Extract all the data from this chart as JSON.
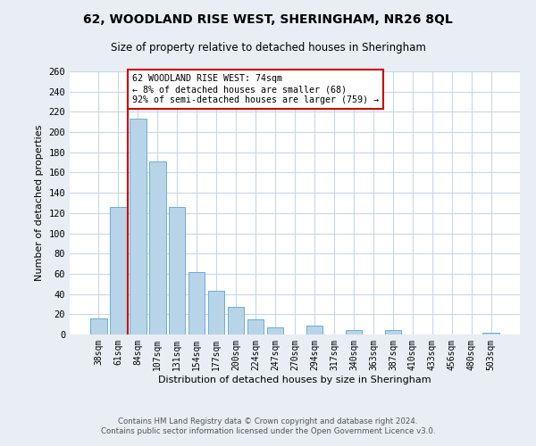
{
  "title": "62, WOODLAND RISE WEST, SHERINGHAM, NR26 8QL",
  "subtitle": "Size of property relative to detached houses in Sheringham",
  "xlabel": "Distribution of detached houses by size in Sheringham",
  "ylabel": "Number of detached properties",
  "bar_labels": [
    "38sqm",
    "61sqm",
    "84sqm",
    "107sqm",
    "131sqm",
    "154sqm",
    "177sqm",
    "200sqm",
    "224sqm",
    "247sqm",
    "270sqm",
    "294sqm",
    "317sqm",
    "340sqm",
    "363sqm",
    "387sqm",
    "410sqm",
    "433sqm",
    "456sqm",
    "480sqm",
    "503sqm"
  ],
  "bar_values": [
    16,
    126,
    213,
    171,
    126,
    62,
    43,
    27,
    15,
    7,
    0,
    9,
    0,
    4,
    0,
    4,
    0,
    0,
    0,
    0,
    2
  ],
  "bar_color": "#b8d4e8",
  "bar_edge_color": "#6aaed6",
  "highlight_color": "#cc0000",
  "annotation_title": "62 WOODLAND RISE WEST: 74sqm",
  "annotation_line1": "← 8% of detached houses are smaller (68)",
  "annotation_line2": "92% of semi-detached houses are larger (759) →",
  "annotation_box_color": "#ffffff",
  "annotation_box_edge": "#cc0000",
  "ylim": [
    0,
    260
  ],
  "yticks": [
    0,
    20,
    40,
    60,
    80,
    100,
    120,
    140,
    160,
    180,
    200,
    220,
    240,
    260
  ],
  "footer_line1": "Contains HM Land Registry data © Crown copyright and database right 2024.",
  "footer_line2": "Contains public sector information licensed under the Open Government Licence v3.0.",
  "bg_color": "#e8eef4",
  "plot_bg_color": "#ffffff",
  "grid_color": "#c8d8e8"
}
